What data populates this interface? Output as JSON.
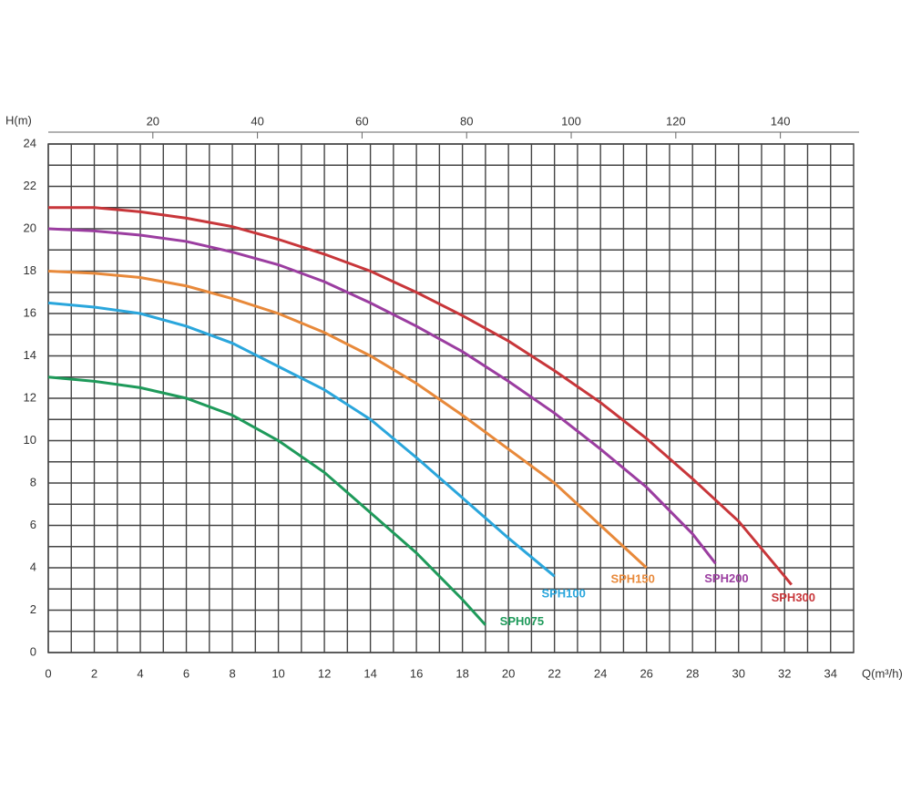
{
  "chart_data": {
    "type": "line",
    "y_label": "H(m)",
    "x_label": "Q(m³/h)",
    "xlim": [
      0,
      35
    ],
    "xticks": [
      0,
      2,
      4,
      6,
      8,
      10,
      12,
      14,
      16,
      18,
      20,
      22,
      24,
      26,
      28,
      30,
      32,
      34
    ],
    "x2lim": [
      0,
      154
    ],
    "x2ticks": [
      20,
      40,
      60,
      80,
      100,
      120,
      140
    ],
    "ylim": [
      0,
      24
    ],
    "yticks": [
      0,
      2,
      4,
      6,
      8,
      10,
      12,
      14,
      16,
      18,
      20,
      22,
      24
    ],
    "grid": true,
    "minor_grid": true,
    "series": [
      {
        "name": "SPH075",
        "color": "#1e9a5a",
        "x": [
          0,
          2,
          4,
          6,
          8,
          10,
          12,
          14,
          16,
          18,
          19
        ],
        "values": [
          13,
          12.8,
          12.5,
          12,
          11.2,
          10,
          8.5,
          6.6,
          4.7,
          2.5,
          1.3
        ]
      },
      {
        "name": "SPH100",
        "color": "#2aa6dc",
        "x": [
          0,
          2,
          4,
          6,
          8,
          10,
          12,
          14,
          16,
          18,
          20,
          22
        ],
        "values": [
          16.5,
          16.3,
          16,
          15.4,
          14.6,
          13.5,
          12.4,
          11,
          9.2,
          7.3,
          5.4,
          3.6
        ]
      },
      {
        "name": "SPH150",
        "color": "#e8893a",
        "x": [
          0,
          2,
          4,
          6,
          8,
          10,
          12,
          14,
          16,
          18,
          20,
          22,
          24,
          26
        ],
        "values": [
          18,
          17.9,
          17.7,
          17.3,
          16.7,
          16,
          15.1,
          14,
          12.7,
          11.2,
          9.6,
          8,
          6,
          4
        ]
      },
      {
        "name": "SPH200",
        "color": "#9b3da0",
        "x": [
          0,
          2,
          4,
          6,
          8,
          10,
          12,
          14,
          16,
          18,
          20,
          22,
          24,
          26,
          28,
          29
        ],
        "values": [
          20,
          19.9,
          19.7,
          19.4,
          18.9,
          18.3,
          17.5,
          16.5,
          15.4,
          14.2,
          12.8,
          11.3,
          9.6,
          7.8,
          5.6,
          4.2
        ]
      },
      {
        "name": "SPH300",
        "color": "#c8363a",
        "x": [
          0,
          2,
          4,
          6,
          8,
          10,
          12,
          14,
          16,
          18,
          20,
          22,
          24,
          26,
          28,
          30,
          32,
          32.3
        ],
        "values": [
          21,
          21,
          20.8,
          20.5,
          20.1,
          19.5,
          18.8,
          18,
          17,
          15.9,
          14.7,
          13.3,
          11.8,
          10.1,
          8.2,
          6.2,
          3.6,
          3.2
        ]
      }
    ]
  }
}
